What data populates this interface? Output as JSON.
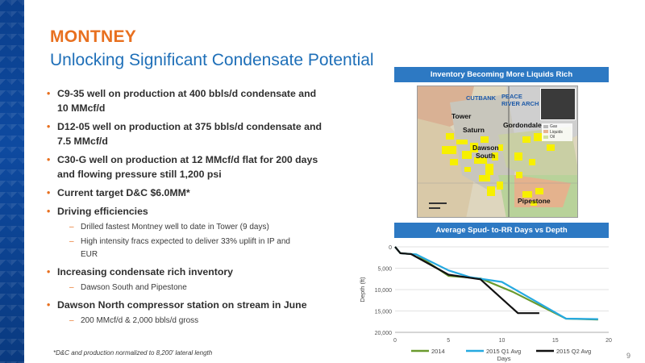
{
  "slide": {
    "title": "MONTNEY",
    "subtitle": "Unlocking Significant Condensate Potential",
    "page_number": "9",
    "footnote": "*D&C and production normalized to 8,200' lateral length"
  },
  "bullets": [
    {
      "level": 1,
      "text": "C9-35 well on production at 400 bbls/d condensate and",
      "text2": "10 MMcf/d"
    },
    {
      "level": 1,
      "text": "D12-05 well on production at 375 bbls/d condensate and",
      "text2": "7.5 MMcf/d"
    },
    {
      "level": 1,
      "text": "C30-G well on production at 12 MMcf/d flat for 200 days",
      "text2": "and flowing pressure still 1,200 psi"
    },
    {
      "level": 1,
      "text": "Current target D&C $6.0MM*",
      "text2": ""
    },
    {
      "level": 1,
      "text": "Driving efficiencies",
      "text2": ""
    },
    {
      "level": 2,
      "text": "Drilled fastest Montney well to date in Tower (9 days)",
      "text2": ""
    },
    {
      "level": 2,
      "text": "High intensity fracs expected to deliver 33% uplift in IP and",
      "text2": "EUR"
    },
    {
      "level": 1,
      "text": "Increasing condensate rich inventory",
      "text2": ""
    },
    {
      "level": 2,
      "text": "Dawson South and Pipestone",
      "text2": ""
    },
    {
      "level": 1,
      "text": "Dawson North compressor station on stream in June",
      "text2": ""
    },
    {
      "level": 2,
      "text": "200 MMcf/d & 2,000 bbls/d gross",
      "text2": ""
    }
  ],
  "map_panel": {
    "header": "Inventory Becoming More Liquids Rich",
    "labels": {
      "cutbank": "CUTBANK",
      "peace_river_1": "PEACE",
      "peace_river_2": "RIVER ARCH",
      "tower": "Tower",
      "saturn": "Saturn",
      "gordondale": "Gordondale",
      "dawson_1": "Dawson",
      "dawson_2": "South",
      "pipestone": "Pipestone"
    },
    "legend": [
      "Gas",
      "Liquids",
      "Oil"
    ],
    "colors": {
      "gas": "#b9b9b9",
      "liquids": "#e9b48f",
      "oil": "#cfe0a0",
      "wells": "#f7f000"
    }
  },
  "chart_panel": {
    "header": "Average Spud- to-RR Days vs Depth"
  },
  "chart_data": {
    "type": "line",
    "title": "Average Spud- to-RR Days vs Depth",
    "xlabel": "Days",
    "ylabel": "Depth (ft)",
    "xlim": [
      0,
      20
    ],
    "ylim": [
      0,
      20000
    ],
    "y_inverted": true,
    "xticks": [
      "0",
      "5",
      "10",
      "15",
      "20"
    ],
    "yticks": [
      "0",
      "5,000",
      "10,000",
      "15,000",
      "20,000"
    ],
    "grid": "horizontal",
    "legend_position": "bottom",
    "series": [
      {
        "name": "2014",
        "color": "#6a9a2e",
        "points": [
          [
            0,
            0
          ],
          [
            0.5,
            1500
          ],
          [
            2,
            1800
          ],
          [
            5,
            6800
          ],
          [
            8,
            7400
          ],
          [
            11,
            10500
          ],
          [
            16,
            16800
          ],
          [
            19,
            17000
          ]
        ]
      },
      {
        "name": "2015 Q1 Avg",
        "color": "#25a9e0",
        "points": [
          [
            0,
            0
          ],
          [
            0.5,
            1500
          ],
          [
            2,
            1800
          ],
          [
            5,
            5500
          ],
          [
            7,
            7100
          ],
          [
            10,
            8200
          ],
          [
            16,
            16800
          ],
          [
            19,
            16900
          ]
        ]
      },
      {
        "name": "2015 Q2 Avg",
        "color": "#111111",
        "points": [
          [
            0,
            0
          ],
          [
            0.5,
            1500
          ],
          [
            1.5,
            1700
          ],
          [
            5,
            6500
          ],
          [
            8,
            7600
          ],
          [
            11.5,
            15500
          ],
          [
            13.5,
            15500
          ]
        ]
      }
    ]
  }
}
